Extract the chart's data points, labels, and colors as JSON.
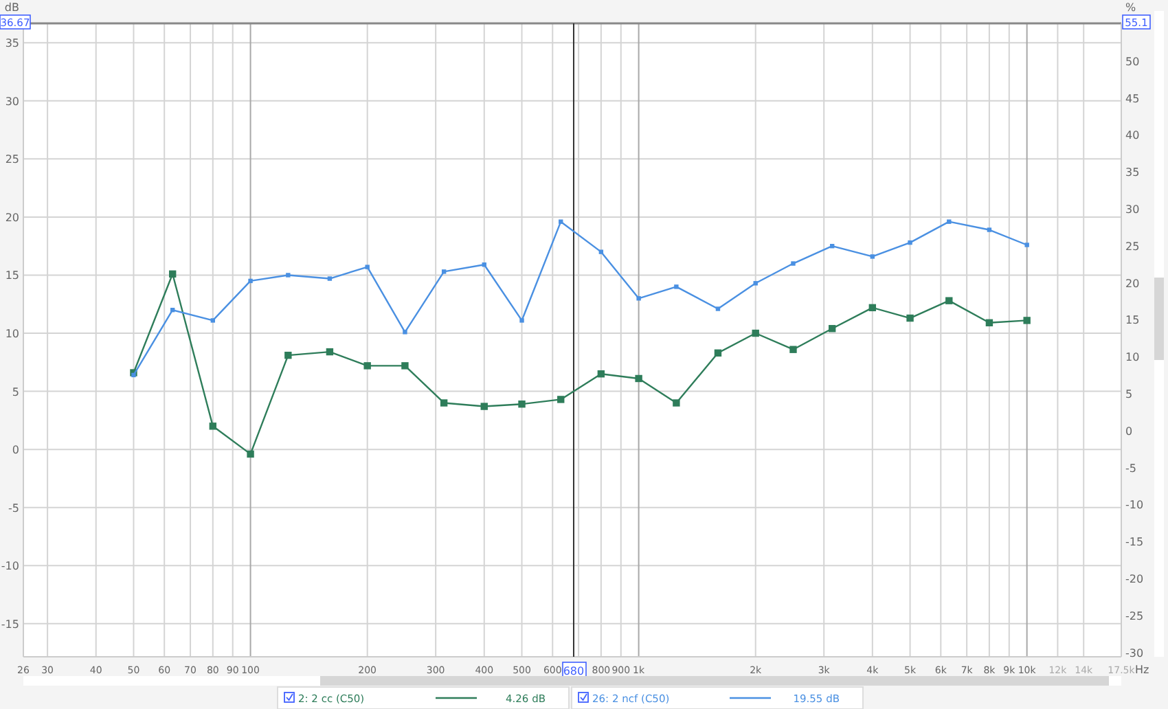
{
  "chart_data": {
    "type": "line",
    "ylabel": "dB",
    "y2label": "%",
    "xlabel": "Hz",
    "log": "x",
    "grid": true,
    "legend": "bottom",
    "marker": "square",
    "line_style": "solid",
    "x": [
      50,
      63,
      80,
      100,
      125,
      160,
      200,
      250,
      315,
      400,
      500,
      630,
      800,
      1000,
      1250,
      1600,
      2000,
      2500,
      3150,
      4000,
      5000,
      6300,
      8000,
      10000
    ],
    "series": [
      {
        "name": "2: 2 cc (C50)",
        "color": "#2e7d5a",
        "values": [
          6.6,
          15.1,
          2.0,
          -0.4,
          8.1,
          8.4,
          7.2,
          7.2,
          4.0,
          3.7,
          3.9,
          4.3,
          6.5,
          6.1,
          4.0,
          8.3,
          10.0,
          8.6,
          10.4,
          12.2,
          11.3,
          12.8,
          10.9,
          11.1
        ]
      },
      {
        "name": "26: 2 ncf (C50)",
        "color": "#4a90e2",
        "values": [
          6.4,
          12.0,
          11.1,
          14.5,
          15.0,
          14.7,
          15.7,
          10.1,
          15.3,
          15.9,
          11.1,
          19.6,
          17.0,
          13.0,
          14.0,
          12.1,
          14.3,
          16.0,
          17.5,
          16.6,
          17.8,
          19.6,
          18.9,
          17.6
        ]
      }
    ],
    "xlim": [
      26,
      17500
    ],
    "xticks": [
      26,
      30,
      40,
      50,
      60,
      70,
      80,
      90,
      100,
      200,
      300,
      400,
      500,
      600,
      {
        "value": 700,
        "label": null
      },
      800,
      900,
      {
        "value": 1000,
        "label": "1k"
      },
      {
        "value": 2000,
        "label": "2k"
      },
      {
        "value": 3000,
        "label": "3k"
      },
      {
        "value": 4000,
        "label": "4k"
      },
      {
        "value": 5000,
        "label": "5k"
      },
      {
        "value": 6000,
        "label": "6k"
      },
      {
        "value": 7000,
        "label": "7k"
      },
      {
        "value": 8000,
        "label": "8k"
      },
      {
        "value": 9000,
        "label": "9k"
      },
      {
        "value": 10000,
        "label": "10k"
      },
      {
        "value": 12000,
        "label": "12k"
      },
      {
        "value": 14000,
        "label": "14k"
      },
      {
        "value": 17500,
        "label": "17.5k"
      }
    ],
    "ylim": [
      -17.85,
      36.67
    ],
    "yticks": [
      -15,
      -10,
      -5,
      0,
      5,
      10,
      15,
      20,
      25,
      30,
      35
    ],
    "y2lim": [
      -30.6,
      55.1
    ],
    "y2ticks": [
      -30,
      -25,
      -20,
      -15,
      -10,
      -5,
      0,
      5,
      10,
      15,
      20,
      25,
      30,
      35,
      40,
      45,
      50
    ],
    "ref_lines": [
      {
        "axis": "x",
        "value": 680,
        "label": "680",
        "color": "#333333"
      }
    ],
    "annotations": [
      "36.67",
      "55.1",
      "4.26 dB",
      "19.55 dB"
    ]
  }
}
